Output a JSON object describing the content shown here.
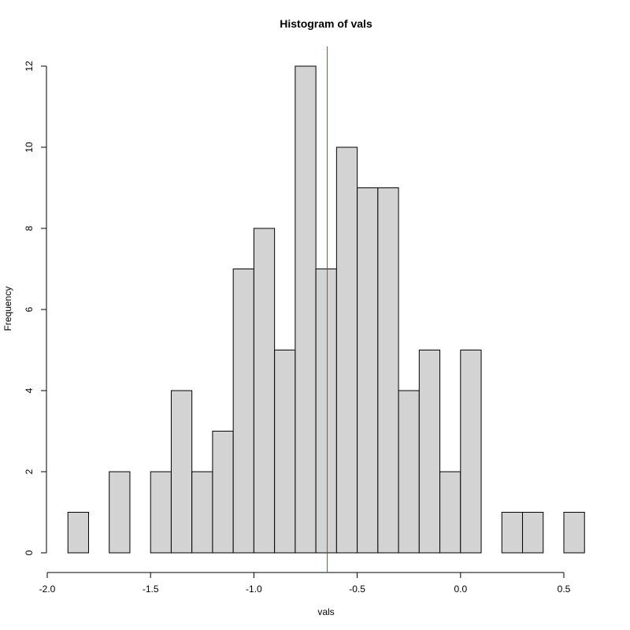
{
  "chart_data": {
    "type": "bar",
    "title": "Histogram of vals",
    "xlabel": "vals",
    "ylabel": "Frequency",
    "bin_edges": [
      -1.9,
      -1.8,
      -1.7,
      -1.6,
      -1.5,
      -1.4,
      -1.3,
      -1.2,
      -1.1,
      -1.0,
      -0.9,
      -0.8,
      -0.7,
      -0.6,
      -0.5,
      -0.4,
      -0.3,
      -0.2,
      -0.1,
      0.0,
      0.1,
      0.2,
      0.3,
      0.4,
      0.5,
      0.6
    ],
    "values": [
      1,
      0,
      2,
      0,
      2,
      4,
      2,
      3,
      7,
      8,
      5,
      12,
      7,
      10,
      9,
      9,
      4,
      5,
      2,
      5,
      0,
      1,
      1,
      0,
      1
    ],
    "xlim": [
      -2.0,
      0.5
    ],
    "ylim": [
      0,
      12
    ],
    "x_ticks": [
      -2.0,
      -1.5,
      -1.0,
      -0.5,
      0.0,
      0.5
    ],
    "x_tick_labels": [
      "-2.0",
      "-1.5",
      "-1.0",
      "-0.5",
      "0.0",
      "0.5"
    ],
    "y_ticks": [
      0,
      2,
      4,
      6,
      8,
      10,
      12
    ],
    "y_tick_labels": [
      "0",
      "2",
      "4",
      "6",
      "8",
      "10",
      "12"
    ],
    "reference_line_x": -0.645,
    "bar_color": "#d3d3d3",
    "reference_line_color": "#e8281e",
    "grid": false
  }
}
